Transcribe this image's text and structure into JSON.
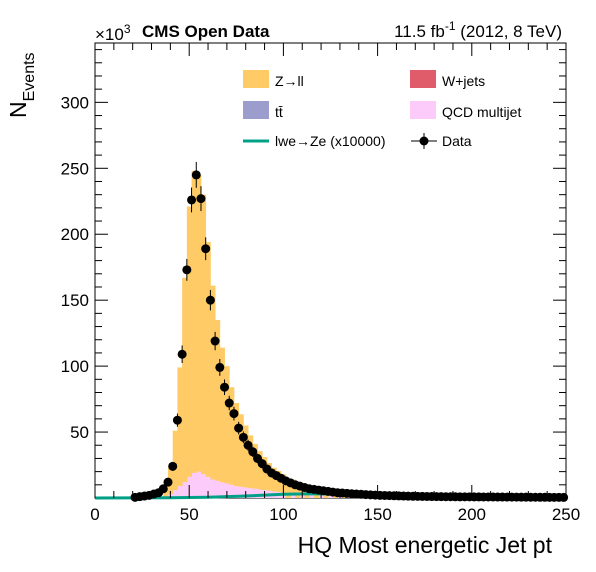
{
  "header": {
    "exponent_prefix": "×10",
    "exponent_power": "3",
    "experiment": "CMS Open Data",
    "lumi_value": "11.5 fb",
    "lumi_power": "-1",
    "energy": " (2012, 8 TeV)"
  },
  "chart_data": {
    "type": "stacked-histogram",
    "xlabel": "HQ Most energetic Jet pt",
    "ylabel_main": "N",
    "ylabel_sub": "Events",
    "xlim": [
      0,
      250
    ],
    "ylim": [
      0,
      345
    ],
    "x_ticks": [
      "0",
      "50",
      "100",
      "150",
      "200",
      "250"
    ],
    "y_ticks": [
      "50",
      "100",
      "150",
      "200",
      "250",
      "300"
    ],
    "bin_width": 2.5,
    "legend": {
      "placement": "top-right",
      "entries": [
        {
          "label": "Z→ll",
          "kind": "fill",
          "color": "#fecb66"
        },
        {
          "label": "W+jets",
          "kind": "fill",
          "color": "#e05c6b"
        },
        {
          "label": "tt̄",
          "kind": "fill",
          "color": "#9c9ccd"
        },
        {
          "label": "QCD multijet",
          "kind": "fill",
          "color": "#fccbfa"
        },
        {
          "label": "lwe→Ze (x10000)",
          "kind": "line",
          "color": "#00a088"
        },
        {
          "label": "Data",
          "kind": "marker",
          "color": "#000000"
        }
      ]
    },
    "stack": [
      {
        "name": "QCD multijet",
        "color": "#fccbfa",
        "x": [
          37.5,
          40,
          42.5,
          45,
          47.5,
          50,
          52.5,
          55,
          57.5,
          60,
          62.5,
          65,
          67.5,
          70,
          72.5,
          75,
          77.5,
          80,
          82.5,
          85,
          87.5,
          90,
          92.5,
          95,
          97.5,
          100,
          105,
          110,
          115,
          120,
          125,
          130,
          135,
          140
        ],
        "values": [
          1,
          3,
          6,
          9,
          12,
          16,
          19,
          20,
          18,
          16,
          14,
          13,
          12,
          11,
          10,
          9,
          8.5,
          8,
          7.5,
          7,
          6.5,
          6,
          5.5,
          5,
          4.5,
          4,
          3.5,
          3,
          2.5,
          2,
          1.5,
          1,
          0.8,
          0.5
        ]
      },
      {
        "name": "Z→ll",
        "color": "#fecb66",
        "x": [
          37.5,
          40,
          42.5,
          45,
          47.5,
          50,
          52.5,
          55,
          57.5,
          60,
          62.5,
          65,
          67.5,
          70,
          72.5,
          75,
          77.5,
          80,
          82.5,
          85,
          87.5,
          90,
          92.5,
          95,
          97.5,
          100,
          102.5,
          105,
          107.5,
          110,
          112.5,
          115,
          117.5,
          120,
          122.5,
          125,
          127.5,
          130,
          132.5,
          135,
          137.5,
          140,
          145,
          150,
          155
        ],
        "values": [
          6,
          20,
          45,
          90,
          155,
          205,
          229,
          225,
          212,
          178,
          147,
          122,
          102,
          89,
          74,
          63,
          55,
          47,
          40,
          34,
          29,
          25,
          21,
          18,
          16,
          14,
          12,
          10.5,
          9,
          8,
          7,
          6,
          5,
          4.5,
          4,
          3.5,
          3,
          2.5,
          2,
          1.8,
          1.5,
          1.2,
          1,
          0.8,
          0.5
        ]
      }
    ],
    "signal_line": {
      "name": "lwe→Ze (x10000)",
      "color": "#00a088",
      "x": [
        0,
        40,
        60,
        80,
        100,
        115,
        130,
        150,
        175,
        200,
        250
      ],
      "values": [
        0,
        0.2,
        0.6,
        1.5,
        2.8,
        3.2,
        2.8,
        2.0,
        1.0,
        0.4,
        0.1
      ]
    },
    "data_series": {
      "name": "Data",
      "color": "#000000",
      "x": [
        21.25,
        23.75,
        26.25,
        28.75,
        31.25,
        33.75,
        36.25,
        38.75,
        41.25,
        43.75,
        46.25,
        48.75,
        51.25,
        53.75,
        56.25,
        58.75,
        61.25,
        63.75,
        66.25,
        68.75,
        71.25,
        73.75,
        76.25,
        78.75,
        81.25,
        83.75,
        86.25,
        88.75,
        91.25,
        93.75,
        96.25,
        98.75,
        101.25,
        103.75,
        106.25,
        108.75,
        111.25,
        113.75,
        116.25,
        118.75,
        121.25,
        123.75,
        126.25,
        128.75,
        131.25,
        133.75,
        136.25,
        138.75,
        141.25,
        143.75,
        146.25,
        148.75,
        151.25,
        153.75,
        156.25,
        158.75,
        161.25,
        163.75,
        166.25,
        168.75,
        171.25,
        173.75,
        176.25,
        178.75,
        181.25,
        183.75,
        186.25,
        188.75,
        191.25,
        193.75,
        196.25,
        198.75,
        201.25,
        203.75,
        206.25,
        208.75,
        211.25,
        213.75,
        216.25,
        218.75,
        221.25,
        223.75,
        226.25,
        228.75,
        231.25,
        233.75,
        236.25,
        238.75,
        241.25,
        243.75,
        246.25,
        248.75
      ],
      "values": [
        0.5,
        1,
        1.5,
        2,
        3,
        4,
        7,
        12,
        24,
        59,
        109,
        173,
        226,
        245,
        227,
        189,
        150,
        119,
        99,
        84,
        72,
        64,
        53,
        46,
        40,
        35,
        30,
        26,
        22,
        19,
        17,
        15,
        13,
        11.5,
        10,
        9,
        8,
        7,
        6.5,
        6,
        5.5,
        5,
        4.5,
        4,
        3.8,
        3.5,
        3.2,
        3,
        2.8,
        2.6,
        2.4,
        2.2,
        2,
        1.9,
        1.8,
        1.7,
        1.6,
        1.5,
        1.4,
        1.3,
        1.25,
        1.2,
        1.15,
        1.1,
        1.05,
        1,
        0.98,
        0.95,
        0.92,
        0.9,
        0.88,
        0.86,
        0.84,
        0.82,
        0.8,
        0.78,
        0.76,
        0.74,
        0.72,
        0.7,
        0.68,
        0.66,
        0.64,
        0.62,
        0.6,
        0.58,
        0.56,
        0.54,
        0.52,
        0.5,
        0.48,
        0.46
      ]
    }
  }
}
